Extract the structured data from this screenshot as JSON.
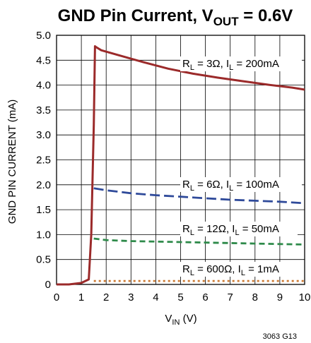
{
  "chart_data": {
    "type": "line",
    "title_main": "GND Pin Current, V",
    "title_sub": "OUT",
    "title_tail": " = 0.6V",
    "xlabel_main": "V",
    "xlabel_sub": "IN",
    "xlabel_tail": " (V)",
    "ylabel": "GND PIN CURRENT (mA)",
    "xlim": [
      0,
      10
    ],
    "ylim": [
      0,
      5.0
    ],
    "x_ticks": [
      "0",
      "1",
      "2",
      "3",
      "4",
      "5",
      "6",
      "7",
      "8",
      "9",
      "10"
    ],
    "y_ticks": [
      "0",
      "0.5",
      "1.0",
      "1.5",
      "2.0",
      "2.5",
      "3.0",
      "3.5",
      "4.0",
      "4.5",
      "5.0"
    ],
    "grid": true,
    "footnote": "3063 G13",
    "series": [
      {
        "label_parts": [
          "R",
          "L",
          " = 3Ω, I",
          "L",
          " = 200mA"
        ],
        "color": "#9b2a2a",
        "dash": "solid",
        "x": [
          0,
          0.5,
          1.0,
          1.3,
          1.4,
          1.5,
          1.55,
          1.6,
          1.8,
          2.5,
          3.5,
          4.5,
          5.5,
          6.5,
          7.5,
          8.5,
          9.5,
          10.0
        ],
        "y": [
          0,
          0,
          0.03,
          0.1,
          1.0,
          3.2,
          4.78,
          4.76,
          4.7,
          4.6,
          4.46,
          4.33,
          4.23,
          4.15,
          4.08,
          4.01,
          3.95,
          3.91
        ]
      },
      {
        "label_parts": [
          "R",
          "L",
          " = 6Ω, I",
          "L",
          " = 100mA"
        ],
        "color": "#2f4a9a",
        "dash": "long",
        "x": [
          1.5,
          2.0,
          3.0,
          4.0,
          5.0,
          6.0,
          7.0,
          8.0,
          9.0,
          10.0
        ],
        "y": [
          1.93,
          1.89,
          1.83,
          1.79,
          1.76,
          1.73,
          1.7,
          1.68,
          1.66,
          1.63
        ]
      },
      {
        "label_parts": [
          "R",
          "L",
          " = 12Ω, I",
          "L",
          " = 50mA"
        ],
        "color": "#2e8a4a",
        "dash": "medium",
        "x": [
          1.5,
          2.0,
          3.0,
          4.0,
          5.0,
          6.0,
          7.0,
          8.0,
          9.0,
          10.0
        ],
        "y": [
          0.92,
          0.89,
          0.87,
          0.86,
          0.85,
          0.84,
          0.83,
          0.82,
          0.81,
          0.8
        ]
      },
      {
        "label_parts": [
          "R",
          "L",
          " = 600Ω, I",
          "L",
          " = 1mA"
        ],
        "color": "#cc7a33",
        "dash": "dotted",
        "x": [
          1.5,
          2.0,
          4.0,
          6.0,
          8.0,
          10.0
        ],
        "y": [
          0.07,
          0.07,
          0.07,
          0.07,
          0.07,
          0.07
        ]
      }
    ]
  }
}
